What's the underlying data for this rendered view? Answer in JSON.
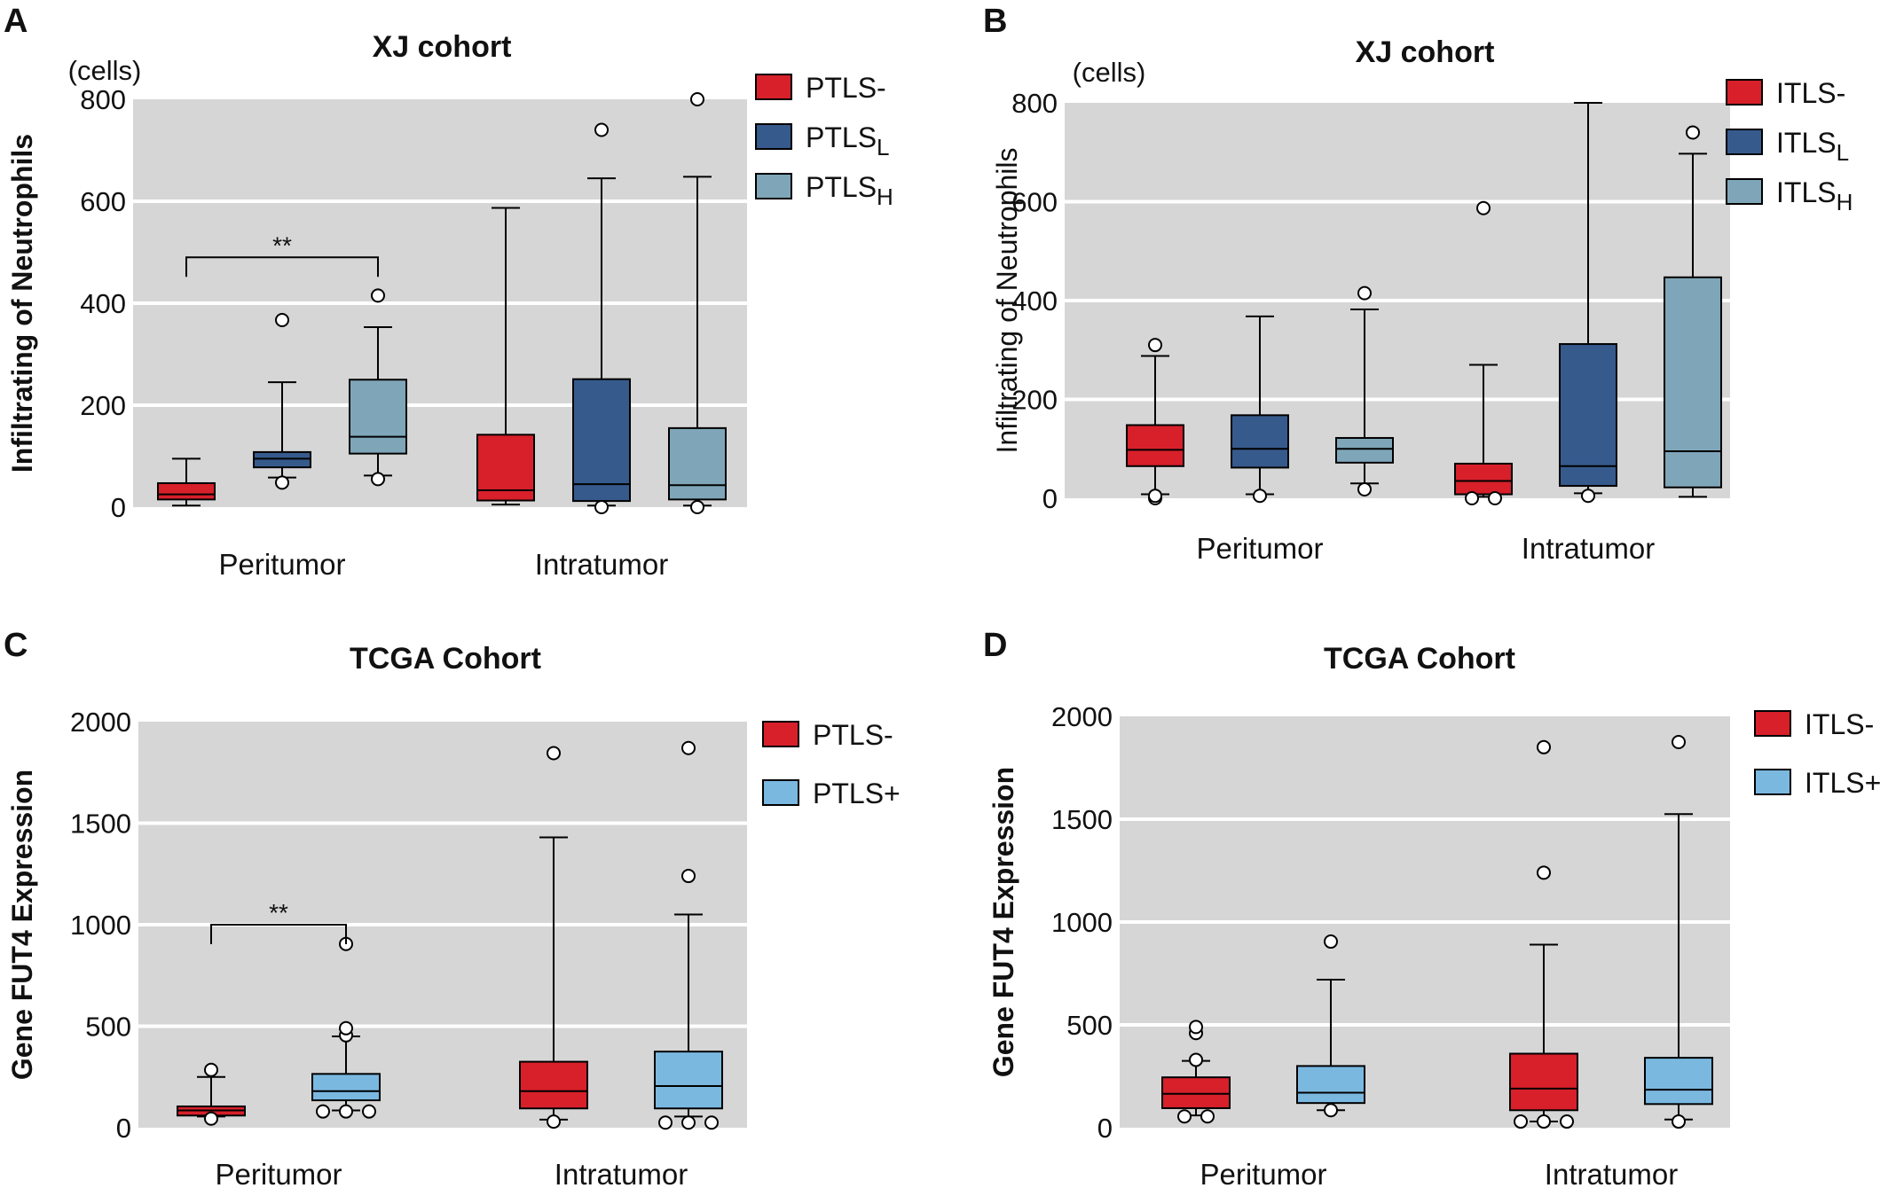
{
  "colors": {
    "neg": "#d7202a",
    "low": "#365a8c",
    "high": "#7fa6b8",
    "pos": "#7ab8e0",
    "panel_bg": "#d6d6d6",
    "grid": "#ffffff"
  },
  "chart_data": [
    {
      "panel": "A",
      "type": "box",
      "title": "XJ cohort",
      "ylabel": "Infiltrating of Neutrophils",
      "ylabel_bold": true,
      "yunit": "(cells)",
      "ylim": [
        0,
        800
      ],
      "yticks": [
        "0",
        "200",
        "400",
        "600",
        "800"
      ],
      "grid": true,
      "legend_position": "right",
      "categories": [
        "Peritumor",
        "Intratumor"
      ],
      "series": [
        {
          "name": "PTLS-",
          "name_main": "PTLS",
          "name_sub": "-",
          "color_key": "neg",
          "boxes": [
            {
              "whisker_low": 3,
              "q1": 15,
              "median": 25,
              "q3": 47,
              "whisker_high": 95,
              "outliers": []
            },
            {
              "whisker_low": 5,
              "q1": 13,
              "median": 33,
              "q3": 142,
              "whisker_high": 587,
              "outliers": []
            }
          ]
        },
        {
          "name": "PTLSL",
          "name_main": "PTLS",
          "name_sub": "L",
          "color_key": "low",
          "boxes": [
            {
              "whisker_low": 58,
              "q1": 78,
              "median": 95,
              "q3": 108,
              "whisker_high": 245,
              "outliers": [
                48,
                367
              ]
            },
            {
              "whisker_low": 3,
              "q1": 12,
              "median": 45,
              "q3": 251,
              "whisker_high": 645,
              "outliers": [
                0,
                740
              ]
            }
          ]
        },
        {
          "name": "PTLSH",
          "name_main": "PTLS",
          "name_sub": "H",
          "color_key": "high",
          "boxes": [
            {
              "whisker_low": 62,
              "q1": 105,
              "median": 138,
              "q3": 250,
              "whisker_high": 353,
              "outliers": [
                55,
                415
              ]
            },
            {
              "whisker_low": 3,
              "q1": 15,
              "median": 43,
              "q3": 155,
              "whisker_high": 648,
              "outliers": [
                0,
                800
              ]
            }
          ]
        }
      ],
      "annotations": [
        {
          "text": "**",
          "category": 0,
          "from_series": 0,
          "to_series": 2,
          "y": 490
        }
      ]
    },
    {
      "panel": "B",
      "type": "box",
      "title": "XJ cohort",
      "ylabel": "Infiltrating of Neutrophils",
      "ylabel_bold": false,
      "yunit": "(cells)",
      "ylim": [
        0,
        800
      ],
      "yticks": [
        "0",
        "200",
        "400",
        "600",
        "800"
      ],
      "grid": true,
      "legend_position": "right",
      "categories": [
        "Peritumor",
        "Intratumor"
      ],
      "series": [
        {
          "name": "ITLS-",
          "name_main": "ITLS",
          "name_sub": "-",
          "color_key": "neg",
          "boxes": [
            {
              "whisker_low": 8,
              "q1": 65,
              "median": 98,
              "q3": 148,
              "whisker_high": 288,
              "outliers": [
                0,
                5,
                310
              ]
            },
            {
              "whisker_low": 3,
              "q1": 8,
              "median": 35,
              "q3": 70,
              "whisker_high": 270,
              "outliers": [
                0,
                0,
                587
              ]
            }
          ]
        },
        {
          "name": "ITLSL",
          "name_main": "ITLS",
          "name_sub": "L",
          "color_key": "low",
          "boxes": [
            {
              "whisker_low": 8,
              "q1": 62,
              "median": 100,
              "q3": 168,
              "whisker_high": 368,
              "outliers": [
                5
              ]
            },
            {
              "whisker_low": 10,
              "q1": 25,
              "median": 65,
              "q3": 312,
              "whisker_high": 800,
              "outliers": [
                5
              ]
            }
          ]
        },
        {
          "name": "ITLSH",
          "name_main": "ITLS",
          "name_sub": "H",
          "color_key": "high",
          "boxes": [
            {
              "whisker_low": 30,
              "q1": 72,
              "median": 100,
              "q3": 122,
              "whisker_high": 382,
              "outliers": [
                18,
                415
              ]
            },
            {
              "whisker_low": 3,
              "q1": 22,
              "median": 95,
              "q3": 447,
              "whisker_high": 697,
              "outliers": [
                740
              ]
            }
          ]
        }
      ],
      "annotations": []
    },
    {
      "panel": "C",
      "type": "box",
      "title": "TCGA Cohort",
      "ylabel": "Gene FUT4 Expression",
      "ylabel_bold": true,
      "yunit": "",
      "ylim": [
        0,
        2000
      ],
      "yticks": [
        "0",
        "500",
        "1000",
        "1500",
        "2000"
      ],
      "grid": true,
      "legend_position": "right",
      "categories": [
        "Peritumor",
        "Intratumor"
      ],
      "series": [
        {
          "name": "PTLS-",
          "name_main": "PTLS",
          "name_sub": "-",
          "color_key": "neg",
          "boxes": [
            {
              "whisker_low": 55,
              "q1": 60,
              "median": 85,
              "q3": 105,
              "whisker_high": 250,
              "outliers": [
                45,
                285
              ]
            },
            {
              "whisker_low": 40,
              "q1": 95,
              "median": 180,
              "q3": 325,
              "whisker_high": 1430,
              "outliers": [
                30,
                1845
              ]
            }
          ]
        },
        {
          "name": "PTLS+",
          "name_main": "PTLS",
          "name_sub": "+",
          "color_key": "pos",
          "boxes": [
            {
              "whisker_low": 85,
              "q1": 135,
              "median": 180,
              "q3": 265,
              "whisker_high": 450,
              "outliers": [
                80,
                80,
                80,
                455,
                490,
                905
              ]
            },
            {
              "whisker_low": 55,
              "q1": 95,
              "median": 205,
              "q3": 375,
              "whisker_high": 1050,
              "outliers": [
                25,
                25,
                25,
                1240,
                1870
              ]
            }
          ]
        }
      ],
      "annotations": [
        {
          "text": "**",
          "category": 0,
          "from_series": 0,
          "to_series": 1,
          "y": 1000
        }
      ]
    },
    {
      "panel": "D",
      "type": "box",
      "title": "TCGA Cohort",
      "ylabel": "Gene FUT4 Expression",
      "ylabel_bold": true,
      "yunit": "",
      "ylim": [
        0,
        2000
      ],
      "yticks": [
        "0",
        "500",
        "1000",
        "1500",
        "2000"
      ],
      "grid": true,
      "legend_position": "right",
      "categories": [
        "Peritumor",
        "Intratumor"
      ],
      "series": [
        {
          "name": "ITLS-",
          "name_main": "ITLS",
          "name_sub": "-",
          "color_key": "neg",
          "boxes": [
            {
              "whisker_low": 60,
              "q1": 95,
              "median": 165,
              "q3": 245,
              "whisker_high": 325,
              "outliers": [
                55,
                55,
                330,
                460,
                490
              ]
            },
            {
              "whisker_low": 30,
              "q1": 85,
              "median": 190,
              "q3": 360,
              "whisker_high": 890,
              "outliers": [
                30,
                30,
                30,
                1240,
                1850
              ]
            }
          ]
        },
        {
          "name": "ITLS+",
          "name_main": "ITLS",
          "name_sub": "+",
          "color_key": "pos",
          "boxes": [
            {
              "whisker_low": 85,
              "q1": 120,
              "median": 170,
              "q3": 300,
              "whisker_high": 720,
              "outliers": [
                85,
                905
              ]
            },
            {
              "whisker_low": 40,
              "q1": 115,
              "median": 185,
              "q3": 340,
              "whisker_high": 1525,
              "outliers": [
                30,
                1875
              ]
            }
          ]
        }
      ],
      "annotations": []
    }
  ]
}
